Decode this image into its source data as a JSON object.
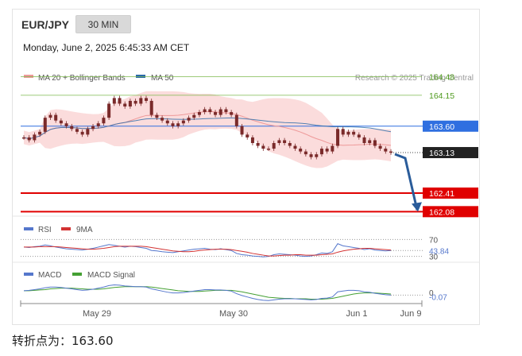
{
  "header": {
    "pair": "EUR/JPY",
    "timeframe": "30 MIN",
    "datetime": "Monday, June 2, 2025 6:45:33 AM CET"
  },
  "caption": "转折点为：163.60",
  "colors": {
    "bb_fill": "#f9d0d0",
    "ma20": "#ee9999",
    "ma50": "#2a6aa8",
    "candle": "#7a2a2a",
    "resistance": "#7db84d",
    "pivot": "#2f6fe0",
    "current": "#222222",
    "support": "#e00000",
    "rsi": "#5577cc",
    "rsi_ma": "#d33333",
    "macd": "#5577cc",
    "macd_signal": "#44a033",
    "arrow": "#2a5c9a"
  },
  "chart_data": [
    {
      "type": "candlestick",
      "legend": [
        "MA 20 + Bollinger Bands",
        "MA 50"
      ],
      "watermark": "Research © 2025 Trading Central",
      "x_ticks": [
        "May 29",
        "May 30",
        "Jun 1",
        "Jun 9"
      ],
      "ylim": [
        162.0,
        164.6
      ],
      "levels": [
        {
          "label": "164.48",
          "value": 164.48,
          "kind": "resistance"
        },
        {
          "label": "164.15",
          "value": 164.15,
          "kind": "resistance"
        },
        {
          "label": "163.60",
          "value": 163.6,
          "kind": "pivot"
        },
        {
          "label": "163.13",
          "value": 163.13,
          "kind": "current"
        },
        {
          "label": "162.41",
          "value": 162.41,
          "kind": "support"
        },
        {
          "label": "162.08",
          "value": 162.08,
          "kind": "support"
        }
      ],
      "close": [
        163.4,
        163.35,
        163.45,
        163.5,
        163.75,
        163.8,
        163.7,
        163.65,
        163.6,
        163.55,
        163.5,
        163.45,
        163.55,
        163.6,
        163.65,
        163.75,
        164.0,
        164.1,
        164.0,
        163.95,
        164.05,
        164.0,
        164.1,
        164.05,
        163.8,
        163.75,
        163.7,
        163.65,
        163.6,
        163.65,
        163.7,
        163.75,
        163.8,
        163.85,
        163.9,
        163.85,
        163.8,
        163.9,
        163.85,
        163.8,
        163.6,
        163.45,
        163.4,
        163.3,
        163.25,
        163.2,
        163.2,
        163.3,
        163.35,
        163.3,
        163.25,
        163.2,
        163.15,
        163.1,
        163.05,
        163.1,
        163.2,
        163.15,
        163.25,
        163.55,
        163.45,
        163.5,
        163.45,
        163.4,
        163.3,
        163.35,
        163.25,
        163.2,
        163.15,
        163.13
      ],
      "trend_projection": {
        "from": 163.13,
        "to": 162.08
      }
    },
    {
      "type": "line",
      "name": "RSI",
      "legend": [
        "RSI",
        "9MA"
      ],
      "levels": [
        70,
        30
      ],
      "last_value": 43.84,
      "last_label": "43.84",
      "ylim": [
        20,
        80
      ],
      "rsi": [
        52,
        51,
        53,
        54,
        57,
        55,
        52,
        50,
        48,
        47,
        46,
        45,
        47,
        49,
        52,
        55,
        58,
        56,
        54,
        52,
        54,
        53,
        51,
        49,
        44,
        43,
        41,
        40,
        39,
        41,
        43,
        45,
        47,
        48,
        49,
        47,
        46,
        48,
        46,
        44,
        37,
        34,
        33,
        31,
        30,
        29,
        30,
        34,
        36,
        35,
        34,
        33,
        31,
        30,
        31,
        34,
        38,
        37,
        41,
        60,
        55,
        53,
        51,
        49,
        46,
        48,
        45,
        44,
        43,
        43.84
      ],
      "ma9": [
        52,
        52,
        52,
        53,
        53,
        53,
        53,
        52,
        51,
        50,
        49,
        48,
        47,
        47,
        48,
        49,
        51,
        53,
        54,
        54,
        54,
        54,
        54,
        53,
        51,
        49,
        47,
        45,
        43,
        42,
        41,
        41,
        42,
        44,
        45,
        46,
        47,
        47,
        47,
        46,
        44,
        42,
        40,
        37,
        35,
        33,
        31,
        31,
        32,
        33,
        33,
        34,
        34,
        33,
        33,
        33,
        34,
        35,
        36,
        40,
        43,
        45,
        47,
        48,
        49,
        49,
        48,
        47,
        46,
        45
      ]
    },
    {
      "type": "line",
      "name": "MACD",
      "legend": [
        "MACD",
        "MACD Signal"
      ],
      "zero_label": "0",
      "last_value": -0.07,
      "last_label": "-0.07",
      "ylim": [
        -0.3,
        0.35
      ],
      "macd": [
        0.05,
        0.06,
        0.08,
        0.1,
        0.13,
        0.15,
        0.15,
        0.14,
        0.12,
        0.1,
        0.08,
        0.06,
        0.07,
        0.09,
        0.12,
        0.15,
        0.19,
        0.21,
        0.2,
        0.18,
        0.17,
        0.16,
        0.16,
        0.15,
        0.1,
        0.07,
        0.04,
        0.01,
        -0.01,
        -0.01,
        0.0,
        0.02,
        0.04,
        0.06,
        0.08,
        0.08,
        0.07,
        0.07,
        0.06,
        0.04,
        -0.03,
        -0.08,
        -0.12,
        -0.16,
        -0.19,
        -0.21,
        -0.22,
        -0.2,
        -0.18,
        -0.17,
        -0.17,
        -0.17,
        -0.18,
        -0.19,
        -0.2,
        -0.19,
        -0.16,
        -0.15,
        -0.12,
        0.02,
        0.04,
        0.06,
        0.06,
        0.05,
        0.02,
        0.01,
        -0.02,
        -0.04,
        -0.06,
        -0.07
      ],
      "signal": [
        0.05,
        0.05,
        0.06,
        0.07,
        0.08,
        0.1,
        0.11,
        0.12,
        0.12,
        0.12,
        0.11,
        0.1,
        0.09,
        0.09,
        0.09,
        0.1,
        0.12,
        0.14,
        0.15,
        0.16,
        0.16,
        0.16,
        0.16,
        0.16,
        0.15,
        0.13,
        0.11,
        0.09,
        0.07,
        0.05,
        0.04,
        0.03,
        0.03,
        0.03,
        0.04,
        0.05,
        0.06,
        0.06,
        0.06,
        0.06,
        0.04,
        0.02,
        -0.01,
        -0.04,
        -0.07,
        -0.1,
        -0.13,
        -0.14,
        -0.15,
        -0.16,
        -0.16,
        -0.17,
        -0.17,
        -0.17,
        -0.18,
        -0.18,
        -0.18,
        -0.17,
        -0.16,
        -0.13,
        -0.1,
        -0.07,
        -0.04,
        -0.02,
        -0.01,
        -0.01,
        -0.01,
        -0.02,
        -0.03,
        -0.04
      ]
    }
  ]
}
